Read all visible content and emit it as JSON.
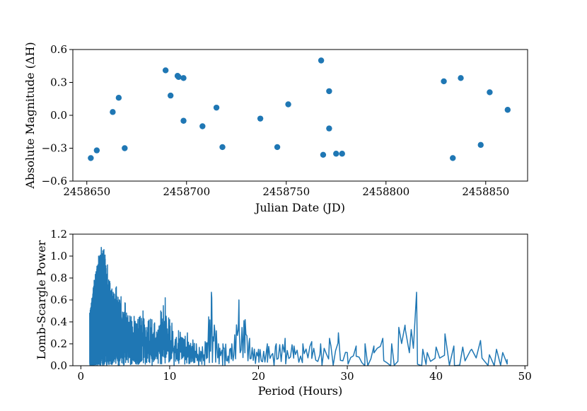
{
  "chart_data": [
    {
      "type": "scatter",
      "xlabel": "Julian Date (JD)",
      "ylabel": "Absolute Magnitude (ΔH)",
      "xlim": [
        2458643,
        2458871
      ],
      "ylim": [
        -0.6,
        0.6
      ],
      "xticks": [
        2458650,
        2458700,
        2458750,
        2458800,
        2458850
      ],
      "xtick_labels": [
        "2458650",
        "2458700",
        "2458750",
        "2458800",
        "2458850"
      ],
      "yticks": [
        -0.6,
        -0.3,
        0.0,
        0.3,
        0.6
      ],
      "ytick_labels": [
        "−0.6",
        "−0.3",
        "0.0",
        "0.3",
        "0.6"
      ],
      "color": "#1f77b4",
      "grid": false,
      "points": [
        {
          "x": 2458652.0,
          "y": -0.39
        },
        {
          "x": 2458655.0,
          "y": -0.32
        },
        {
          "x": 2458663.0,
          "y": 0.03
        },
        {
          "x": 2458666.0,
          "y": 0.16
        },
        {
          "x": 2458669.0,
          "y": -0.3
        },
        {
          "x": 2458689.5,
          "y": 0.41
        },
        {
          "x": 2458692.0,
          "y": 0.18
        },
        {
          "x": 2458695.5,
          "y": 0.36
        },
        {
          "x": 2458696.0,
          "y": 0.35
        },
        {
          "x": 2458698.5,
          "y": 0.34
        },
        {
          "x": 2458698.5,
          "y": -0.05
        },
        {
          "x": 2458708.0,
          "y": -0.1
        },
        {
          "x": 2458715.0,
          "y": 0.07
        },
        {
          "x": 2458718.0,
          "y": -0.29
        },
        {
          "x": 2458737.0,
          "y": -0.03
        },
        {
          "x": 2458745.5,
          "y": -0.29
        },
        {
          "x": 2458751.0,
          "y": 0.1
        },
        {
          "x": 2458767.5,
          "y": 0.5
        },
        {
          "x": 2458768.5,
          "y": -0.36
        },
        {
          "x": 2458771.5,
          "y": 0.22
        },
        {
          "x": 2458771.5,
          "y": -0.12
        },
        {
          "x": 2458775.0,
          "y": -0.35
        },
        {
          "x": 2458778.0,
          "y": -0.35
        },
        {
          "x": 2458829.0,
          "y": 0.31
        },
        {
          "x": 2458833.5,
          "y": -0.39
        },
        {
          "x": 2458837.5,
          "y": 0.34
        },
        {
          "x": 2458847.5,
          "y": -0.27
        },
        {
          "x": 2458852.0,
          "y": 0.21
        },
        {
          "x": 2458861.0,
          "y": 0.05
        }
      ]
    },
    {
      "type": "line",
      "xlabel": "Period (Hours)",
      "ylabel": "Lomb-Scargle Power",
      "xlim": [
        -0.9,
        50.3
      ],
      "ylim": [
        0.0,
        1.2
      ],
      "xticks": [
        0,
        10,
        20,
        30,
        40,
        50
      ],
      "xtick_labels": [
        "0",
        "10",
        "20",
        "30",
        "40",
        "50"
      ],
      "yticks": [
        0.0,
        0.2,
        0.4,
        0.6,
        0.8,
        1.0,
        1.2
      ],
      "ytick_labels": [
        "0.0",
        "0.2",
        "0.4",
        "0.6",
        "0.8",
        "1.0",
        "1.2"
      ],
      "color": "#1f77b4",
      "grid": false,
      "period_range": [
        1.0,
        48.0
      ],
      "envelope": [
        [
          1.0,
          0.48
        ],
        [
          1.5,
          0.78
        ],
        [
          2.0,
          1.0
        ],
        [
          2.3,
          1.08
        ],
        [
          2.6,
          1.06
        ],
        [
          3.0,
          0.92
        ],
        [
          3.5,
          0.7
        ],
        [
          4.0,
          0.72
        ],
        [
          5.0,
          0.57
        ],
        [
          6.0,
          0.45
        ],
        [
          7.0,
          0.5
        ],
        [
          8.0,
          0.42
        ],
        [
          9.0,
          0.5
        ],
        [
          9.5,
          0.62
        ],
        [
          10.0,
          0.42
        ],
        [
          11.0,
          0.32
        ],
        [
          12.0,
          0.3
        ],
        [
          13.0,
          0.2
        ],
        [
          14.0,
          0.22
        ],
        [
          14.7,
          0.67
        ],
        [
          15.5,
          0.2
        ],
        [
          16.0,
          0.2
        ],
        [
          17.0,
          0.2
        ],
        [
          17.8,
          0.6
        ],
        [
          18.5,
          0.42
        ],
        [
          19.0,
          0.25
        ],
        [
          20.0,
          0.15
        ],
        [
          21.0,
          0.2
        ],
        [
          22.0,
          0.2
        ],
        [
          23.0,
          0.25
        ],
        [
          24.0,
          0.18
        ],
        [
          25.0,
          0.2
        ],
        [
          26.0,
          0.22
        ],
        [
          27.0,
          0.2
        ],
        [
          28.0,
          0.25
        ],
        [
          29.0,
          0.3
        ],
        [
          30.0,
          0.12
        ],
        [
          31.0,
          0.18
        ],
        [
          32.0,
          0.2
        ],
        [
          33.0,
          0.18
        ],
        [
          34.0,
          0.25
        ],
        [
          35.0,
          0.2
        ],
        [
          35.8,
          0.35
        ],
        [
          36.5,
          0.37
        ],
        [
          37.2,
          0.33
        ],
        [
          37.8,
          0.67
        ],
        [
          38.5,
          0.15
        ],
        [
          39.0,
          0.12
        ],
        [
          40.0,
          0.17
        ],
        [
          41.0,
          0.29
        ],
        [
          42.0,
          0.18
        ],
        [
          43.0,
          0.17
        ],
        [
          44.0,
          0.15
        ],
        [
          45.0,
          0.23
        ],
        [
          46.0,
          0.1
        ],
        [
          46.8,
          0.15
        ],
        [
          47.5,
          0.12
        ],
        [
          48.0,
          0.06
        ]
      ]
    }
  ]
}
